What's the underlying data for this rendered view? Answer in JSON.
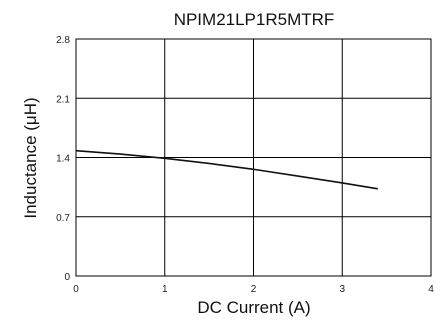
{
  "chart_data": {
    "type": "line",
    "title": "NPIM21LP1R5MTRF",
    "xlabel": "DC Current (A)",
    "ylabel": "Inductance (μH)",
    "xlim": [
      0,
      4
    ],
    "ylim": [
      0,
      2.8
    ],
    "x_ticks": [
      "0",
      "1",
      "2",
      "3",
      "4"
    ],
    "y_ticks": [
      "0",
      "0.7",
      "1.4",
      "2.1",
      "2.8"
    ],
    "grid": true,
    "series": [
      {
        "x": [
          0,
          0.5,
          1.0,
          1.5,
          2.0,
          2.5,
          3.0,
          3.4
        ],
        "y": [
          1.48,
          1.44,
          1.39,
          1.33,
          1.26,
          1.18,
          1.1,
          1.03
        ]
      }
    ]
  }
}
